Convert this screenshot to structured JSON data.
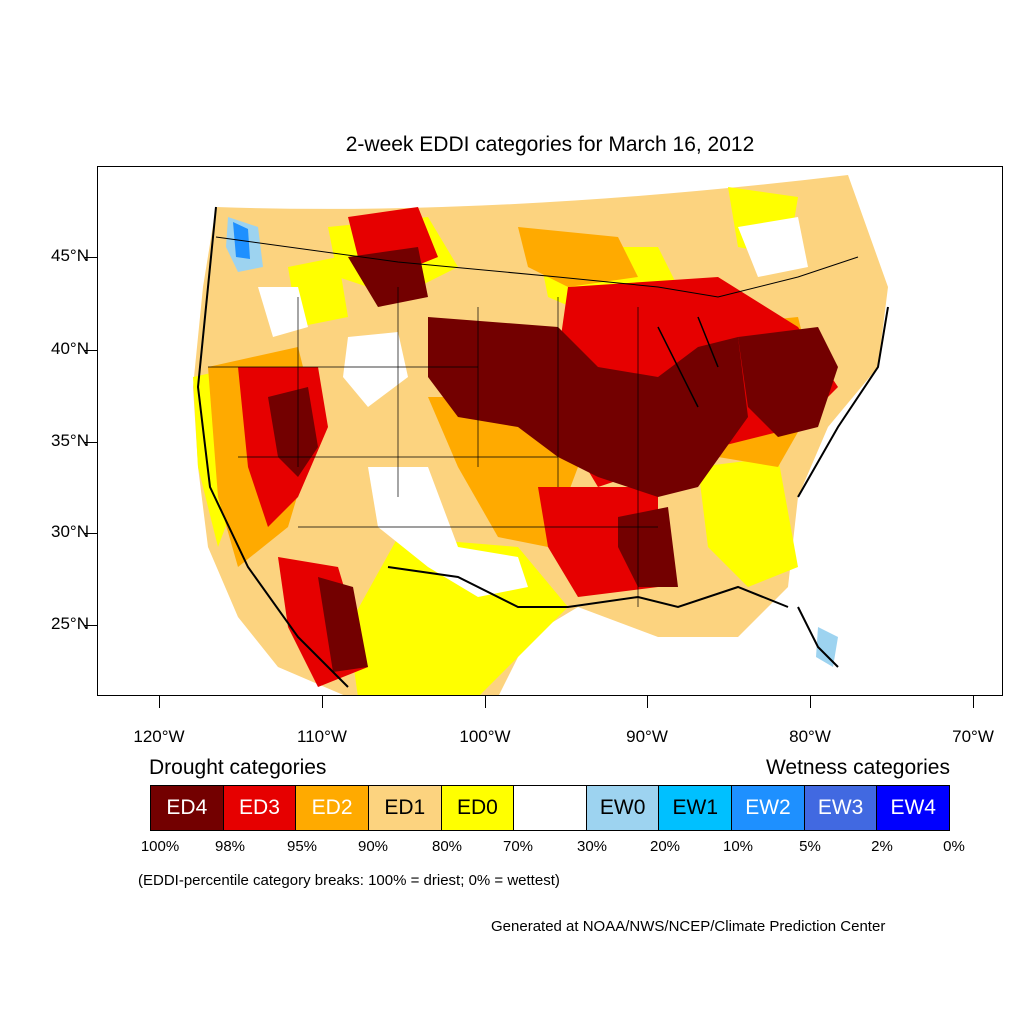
{
  "title": "2-week EDDI categories for March 16, 2012",
  "lat_axis": [
    "45°N",
    "40°N",
    "35°N",
    "30°N",
    "25°N"
  ],
  "lon_axis": [
    "120°W",
    "110°W",
    "100°W",
    "90°W",
    "80°W",
    "70°W"
  ],
  "legend": {
    "drought_heading": "Drought categories",
    "wetness_heading": "Wetness categories",
    "categories": [
      {
        "label": "ED4",
        "color": "#730000",
        "text_color": "#ffffff"
      },
      {
        "label": "ED3",
        "color": "#e60000",
        "text_color": "#ffffff"
      },
      {
        "label": "ED2",
        "color": "#ffaa00",
        "text_color": "#ffffff"
      },
      {
        "label": "ED1",
        "color": "#fcd37f",
        "text_color": "#000000"
      },
      {
        "label": "ED0",
        "color": "#ffff00",
        "text_color": "#000000"
      },
      {
        "label": "",
        "color": "#ffffff",
        "text_color": "#000000"
      },
      {
        "label": "EW0",
        "color": "#9dd3f0",
        "text_color": "#000000"
      },
      {
        "label": "EW1",
        "color": "#00c0ff",
        "text_color": "#000000"
      },
      {
        "label": "EW2",
        "color": "#1e90ff",
        "text_color": "#ffffff"
      },
      {
        "label": "EW3",
        "color": "#4169e1",
        "text_color": "#ffffff"
      },
      {
        "label": "EW4",
        "color": "#0000ff",
        "text_color": "#ffffff"
      }
    ],
    "percentiles": [
      "100%",
      "98%",
      "95%",
      "90%",
      "80%",
      "70%",
      "30%",
      "20%",
      "10%",
      "5%",
      "2%",
      "0%"
    ]
  },
  "note": "(EDDI-percentile category breaks: 100% = driest; 0% = wettest)",
  "credit": "Generated at NOAA/NWS/NCEP/Climate Prediction Center"
}
